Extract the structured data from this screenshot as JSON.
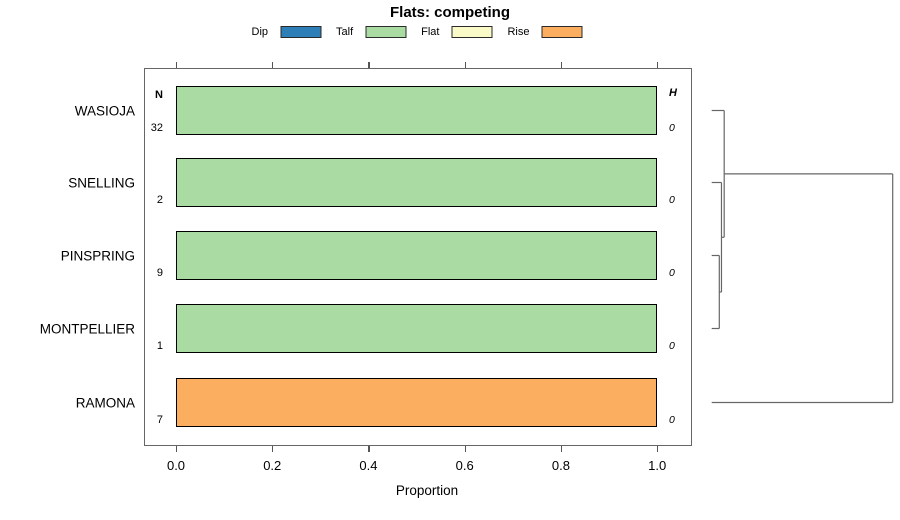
{
  "figure": {
    "title": "Flats: competing",
    "xlabel": "Proportion",
    "columns": {
      "n_header": "N",
      "h_header": "H"
    }
  },
  "chart_data": {
    "type": "bar",
    "orientation": "horizontal-stacked-proportion",
    "title": "Flats: competing",
    "xlabel": "Proportion",
    "xlim": [
      0,
      1
    ],
    "xticks": [
      "0.0",
      "0.2",
      "0.4",
      "0.6",
      "0.8",
      "1.0"
    ],
    "grid": false,
    "legend_position": "top",
    "legend": [
      {
        "label": "Dip",
        "color": "#2E7EB8"
      },
      {
        "label": "Talf",
        "color": "#AADBA3"
      },
      {
        "label": "Flat",
        "color": "#FAFAC8"
      },
      {
        "label": "Rise",
        "color": "#FBAD60"
      }
    ],
    "categories": [
      "WASIOJA",
      "SNELLING",
      "PINSPRING",
      "MONTPELLIER",
      "RAMONA"
    ],
    "n_values": [
      32,
      2,
      9,
      1,
      7
    ],
    "h_values": [
      0,
      0,
      0,
      0,
      0
    ],
    "series": [
      {
        "name": "Dip",
        "values": [
          0,
          0,
          0,
          0,
          0
        ]
      },
      {
        "name": "Talf",
        "values": [
          1,
          1,
          1,
          1,
          0
        ]
      },
      {
        "name": "Flat",
        "values": [
          0,
          0,
          0,
          0,
          0
        ]
      },
      {
        "name": "Rise",
        "values": [
          0,
          0,
          0,
          0,
          1
        ]
      }
    ],
    "dendrogram": {
      "height": 1.0,
      "children": [
        {
          "height": 0.069,
          "children": [
            {
              "leaf": "WASIOJA"
            },
            {
              "height": 0.054,
              "children": [
                {
                  "leaf": "SNELLING"
                },
                {
                  "height": 0.042,
                  "children": [
                    {
                      "leaf": "PINSPRING"
                    },
                    {
                      "leaf": "MONTPELLIER"
                    }
                  ]
                }
              ]
            }
          ]
        },
        {
          "leaf": "RAMONA"
        }
      ]
    }
  }
}
